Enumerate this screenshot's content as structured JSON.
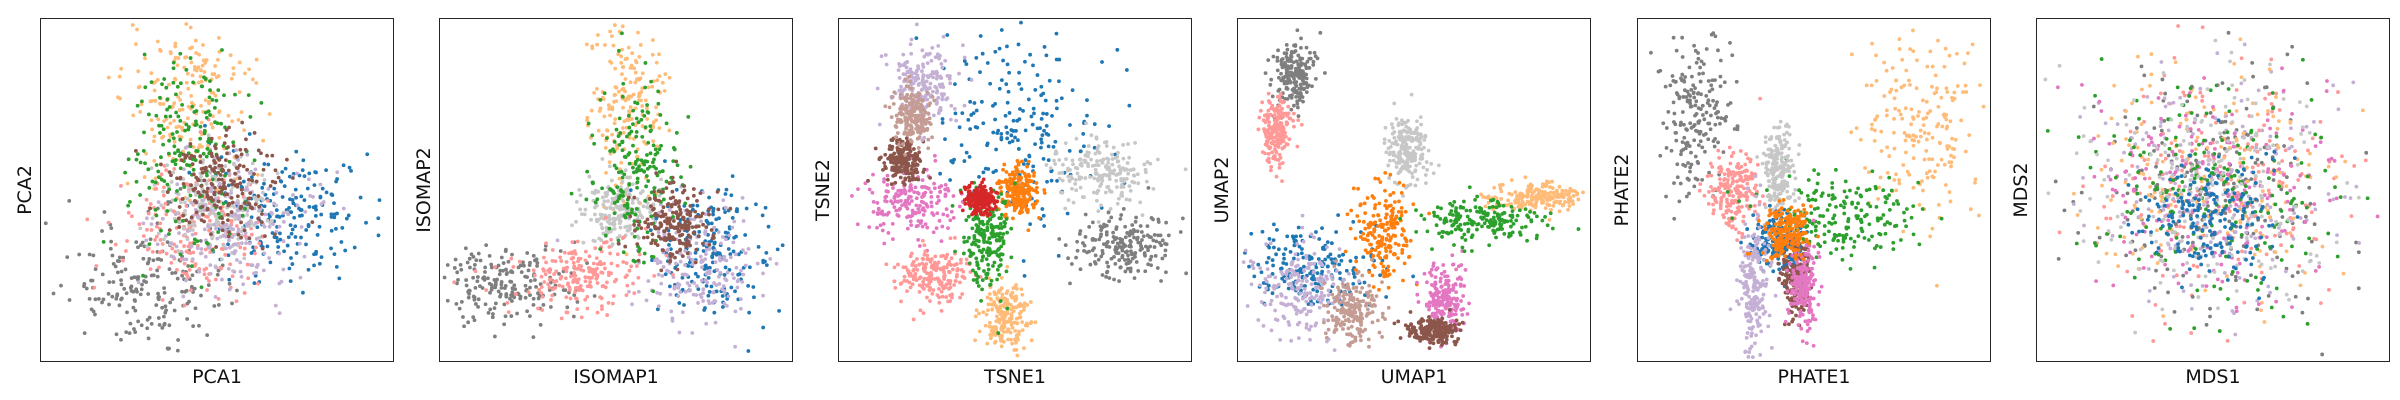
{
  "figure": {
    "colors": {
      "blue": "#1f77b4",
      "orange": "#ff7f0e",
      "light_orange": "#ffbb78",
      "green": "#2ca02c",
      "red": "#d62728",
      "brown": "#8c564b",
      "pink": "#e377c2",
      "salmon": "#ff9896",
      "gray": "#7f7f7f",
      "light_gray": "#c7c7c7",
      "lavender": "#c5b0d5",
      "tan": "#c49c94"
    }
  },
  "chart_data": [
    {
      "type": "scatter",
      "title": "",
      "xlabel": "PCA1",
      "ylabel": "PCA2",
      "grid": false,
      "ticks": "none",
      "series": [
        {
          "color": "#7f7f7f",
          "center": [
            0.3,
            0.78
          ],
          "spread": [
            0.11,
            0.09
          ]
        },
        {
          "color": "#1f77b4",
          "center": [
            0.7,
            0.57
          ],
          "spread": [
            0.12,
            0.09
          ]
        },
        {
          "color": "#ffbb78",
          "center": [
            0.42,
            0.24
          ],
          "spread": [
            0.09,
            0.13
          ]
        },
        {
          "color": "#ff9896",
          "center": [
            0.45,
            0.63
          ],
          "spread": [
            0.1,
            0.1
          ]
        },
        {
          "color": "#c7c7c7",
          "center": [
            0.5,
            0.55
          ],
          "spread": [
            0.08,
            0.07
          ]
        },
        {
          "color": "#c5b0d5",
          "center": [
            0.55,
            0.6
          ],
          "spread": [
            0.12,
            0.1
          ]
        },
        {
          "color": "#2ca02c",
          "center": [
            0.42,
            0.4
          ],
          "spread": [
            0.09,
            0.15
          ]
        },
        {
          "color": "#8c564b",
          "center": [
            0.52,
            0.48
          ],
          "spread": [
            0.08,
            0.08
          ]
        }
      ]
    },
    {
      "type": "scatter",
      "title": "",
      "xlabel": "ISOMAP1",
      "ylabel": "ISOMAP2",
      "grid": false,
      "ticks": "none",
      "series": [
        {
          "color": "#7f7f7f",
          "center": [
            0.2,
            0.77
          ],
          "spread": [
            0.1,
            0.06
          ]
        },
        {
          "color": "#ffbb78",
          "center": [
            0.53,
            0.24
          ],
          "spread": [
            0.05,
            0.14
          ]
        },
        {
          "color": "#1f77b4",
          "center": [
            0.77,
            0.68
          ],
          "spread": [
            0.08,
            0.09
          ]
        },
        {
          "color": "#c5b0d5",
          "center": [
            0.73,
            0.72
          ],
          "spread": [
            0.09,
            0.08
          ]
        },
        {
          "color": "#c7c7c7",
          "center": [
            0.5,
            0.55
          ],
          "spread": [
            0.05,
            0.05
          ]
        },
        {
          "color": "#ff9896",
          "center": [
            0.4,
            0.75
          ],
          "spread": [
            0.09,
            0.05
          ]
        },
        {
          "color": "#2ca02c",
          "center": [
            0.56,
            0.45
          ],
          "spread": [
            0.06,
            0.14
          ]
        },
        {
          "color": "#8c564b",
          "center": [
            0.66,
            0.6
          ],
          "spread": [
            0.06,
            0.06
          ]
        }
      ]
    },
    {
      "type": "scatter",
      "title": "",
      "xlabel": "TSNE1",
      "ylabel": "TSNE2",
      "grid": false,
      "ticks": "none",
      "series": [
        {
          "color": "#1f77b4",
          "center": [
            0.5,
            0.3
          ],
          "spread": [
            0.11,
            0.15
          ]
        },
        {
          "color": "#e377c2",
          "center": [
            0.2,
            0.53
          ],
          "spread": [
            0.07,
            0.06
          ]
        },
        {
          "color": "#8c564b",
          "center": [
            0.18,
            0.42
          ],
          "spread": [
            0.03,
            0.03
          ]
        },
        {
          "color": "#c5b0d5",
          "center": [
            0.24,
            0.19
          ],
          "spread": [
            0.05,
            0.06
          ]
        },
        {
          "color": "#c49c94",
          "center": [
            0.21,
            0.28
          ],
          "spread": [
            0.03,
            0.04
          ]
        },
        {
          "color": "#c7c7c7",
          "center": [
            0.75,
            0.45
          ],
          "spread": [
            0.07,
            0.05
          ]
        },
        {
          "color": "#7f7f7f",
          "center": [
            0.8,
            0.66
          ],
          "spread": [
            0.08,
            0.05
          ]
        },
        {
          "color": "#ff9896",
          "center": [
            0.27,
            0.75
          ],
          "spread": [
            0.05,
            0.04
          ]
        },
        {
          "color": "#ffbb78",
          "center": [
            0.47,
            0.87
          ],
          "spread": [
            0.03,
            0.05
          ]
        },
        {
          "color": "#ff7f0e",
          "center": [
            0.51,
            0.5
          ],
          "spread": [
            0.03,
            0.04
          ]
        },
        {
          "color": "#2ca02c",
          "center": [
            0.42,
            0.64
          ],
          "spread": [
            0.03,
            0.08
          ]
        },
        {
          "color": "#d62728",
          "center": [
            0.4,
            0.53
          ],
          "spread": [
            0.02,
            0.02
          ]
        }
      ]
    },
    {
      "type": "scatter",
      "title": "",
      "xlabel": "UMAP1",
      "ylabel": "UMAP2",
      "grid": false,
      "ticks": "none",
      "series": [
        {
          "color": "#7f7f7f",
          "center": [
            0.16,
            0.16
          ],
          "spread": [
            0.03,
            0.05
          ]
        },
        {
          "color": "#ff9896",
          "center": [
            0.11,
            0.33
          ],
          "spread": [
            0.02,
            0.05
          ]
        },
        {
          "color": "#c7c7c7",
          "center": [
            0.48,
            0.38
          ],
          "spread": [
            0.03,
            0.05
          ]
        },
        {
          "color": "#1f77b4",
          "center": [
            0.22,
            0.72
          ],
          "spread": [
            0.09,
            0.06
          ]
        },
        {
          "color": "#c5b0d5",
          "center": [
            0.18,
            0.8
          ],
          "spread": [
            0.07,
            0.07
          ]
        },
        {
          "color": "#ff7f0e",
          "center": [
            0.41,
            0.62
          ],
          "spread": [
            0.04,
            0.07
          ]
        },
        {
          "color": "#e377c2",
          "center": [
            0.59,
            0.82
          ],
          "spread": [
            0.03,
            0.05
          ]
        },
        {
          "color": "#8c564b",
          "center": [
            0.55,
            0.91
          ],
          "spread": [
            0.04,
            0.02
          ]
        },
        {
          "color": "#ffbb78",
          "center": [
            0.85,
            0.52
          ],
          "spread": [
            0.07,
            0.02
          ]
        },
        {
          "color": "#2ca02c",
          "center": [
            0.68,
            0.59
          ],
          "spread": [
            0.09,
            0.03
          ]
        },
        {
          "color": "#c49c94",
          "center": [
            0.32,
            0.85
          ],
          "spread": [
            0.04,
            0.05
          ]
        }
      ]
    },
    {
      "type": "scatter",
      "title": "",
      "xlabel": "PHATE1",
      "ylabel": "PHATE2",
      "grid": false,
      "ticks": "none",
      "series": [
        {
          "color": "#7f7f7f",
          "center": [
            0.17,
            0.28
          ],
          "spread": [
            0.05,
            0.12
          ]
        },
        {
          "color": "#ff9896",
          "center": [
            0.27,
            0.5
          ],
          "spread": [
            0.04,
            0.06
          ]
        },
        {
          "color": "#ffbb78",
          "center": [
            0.8,
            0.31
          ],
          "spread": [
            0.1,
            0.14
          ]
        },
        {
          "color": "#2ca02c",
          "center": [
            0.58,
            0.58
          ],
          "spread": [
            0.12,
            0.06
          ]
        },
        {
          "color": "#c7c7c7",
          "center": [
            0.4,
            0.45
          ],
          "spread": [
            0.02,
            0.07
          ]
        },
        {
          "color": "#1f77b4",
          "center": [
            0.4,
            0.65
          ],
          "spread": [
            0.04,
            0.04
          ]
        },
        {
          "color": "#c5b0d5",
          "center": [
            0.33,
            0.78
          ],
          "spread": [
            0.02,
            0.1
          ]
        },
        {
          "color": "#8c564b",
          "center": [
            0.45,
            0.75
          ],
          "spread": [
            0.02,
            0.06
          ]
        },
        {
          "color": "#e377c2",
          "center": [
            0.47,
            0.78
          ],
          "spread": [
            0.02,
            0.06
          ]
        },
        {
          "color": "#ff7f0e",
          "center": [
            0.42,
            0.62
          ],
          "spread": [
            0.03,
            0.04
          ]
        }
      ]
    },
    {
      "type": "scatter",
      "title": "",
      "xlabel": "MDS1",
      "ylabel": "MDS2",
      "grid": false,
      "ticks": "none",
      "series": [
        {
          "color": "#ff9896",
          "center": [
            0.5,
            0.5
          ],
          "spread": [
            0.18,
            0.17
          ]
        },
        {
          "color": "#7f7f7f",
          "center": [
            0.5,
            0.5
          ],
          "spread": [
            0.18,
            0.17
          ]
        },
        {
          "color": "#c5b0d5",
          "center": [
            0.5,
            0.5
          ],
          "spread": [
            0.18,
            0.17
          ]
        },
        {
          "color": "#ffbb78",
          "center": [
            0.5,
            0.48
          ],
          "spread": [
            0.18,
            0.17
          ]
        },
        {
          "color": "#e377c2",
          "center": [
            0.5,
            0.5
          ],
          "spread": [
            0.18,
            0.17
          ]
        },
        {
          "color": "#2ca02c",
          "center": [
            0.5,
            0.5
          ],
          "spread": [
            0.18,
            0.17
          ]
        },
        {
          "color": "#c7c7c7",
          "center": [
            0.5,
            0.5
          ],
          "spread": [
            0.18,
            0.17
          ]
        },
        {
          "color": "#1f77b4",
          "center": [
            0.5,
            0.58
          ],
          "spread": [
            0.1,
            0.09
          ]
        }
      ]
    }
  ]
}
